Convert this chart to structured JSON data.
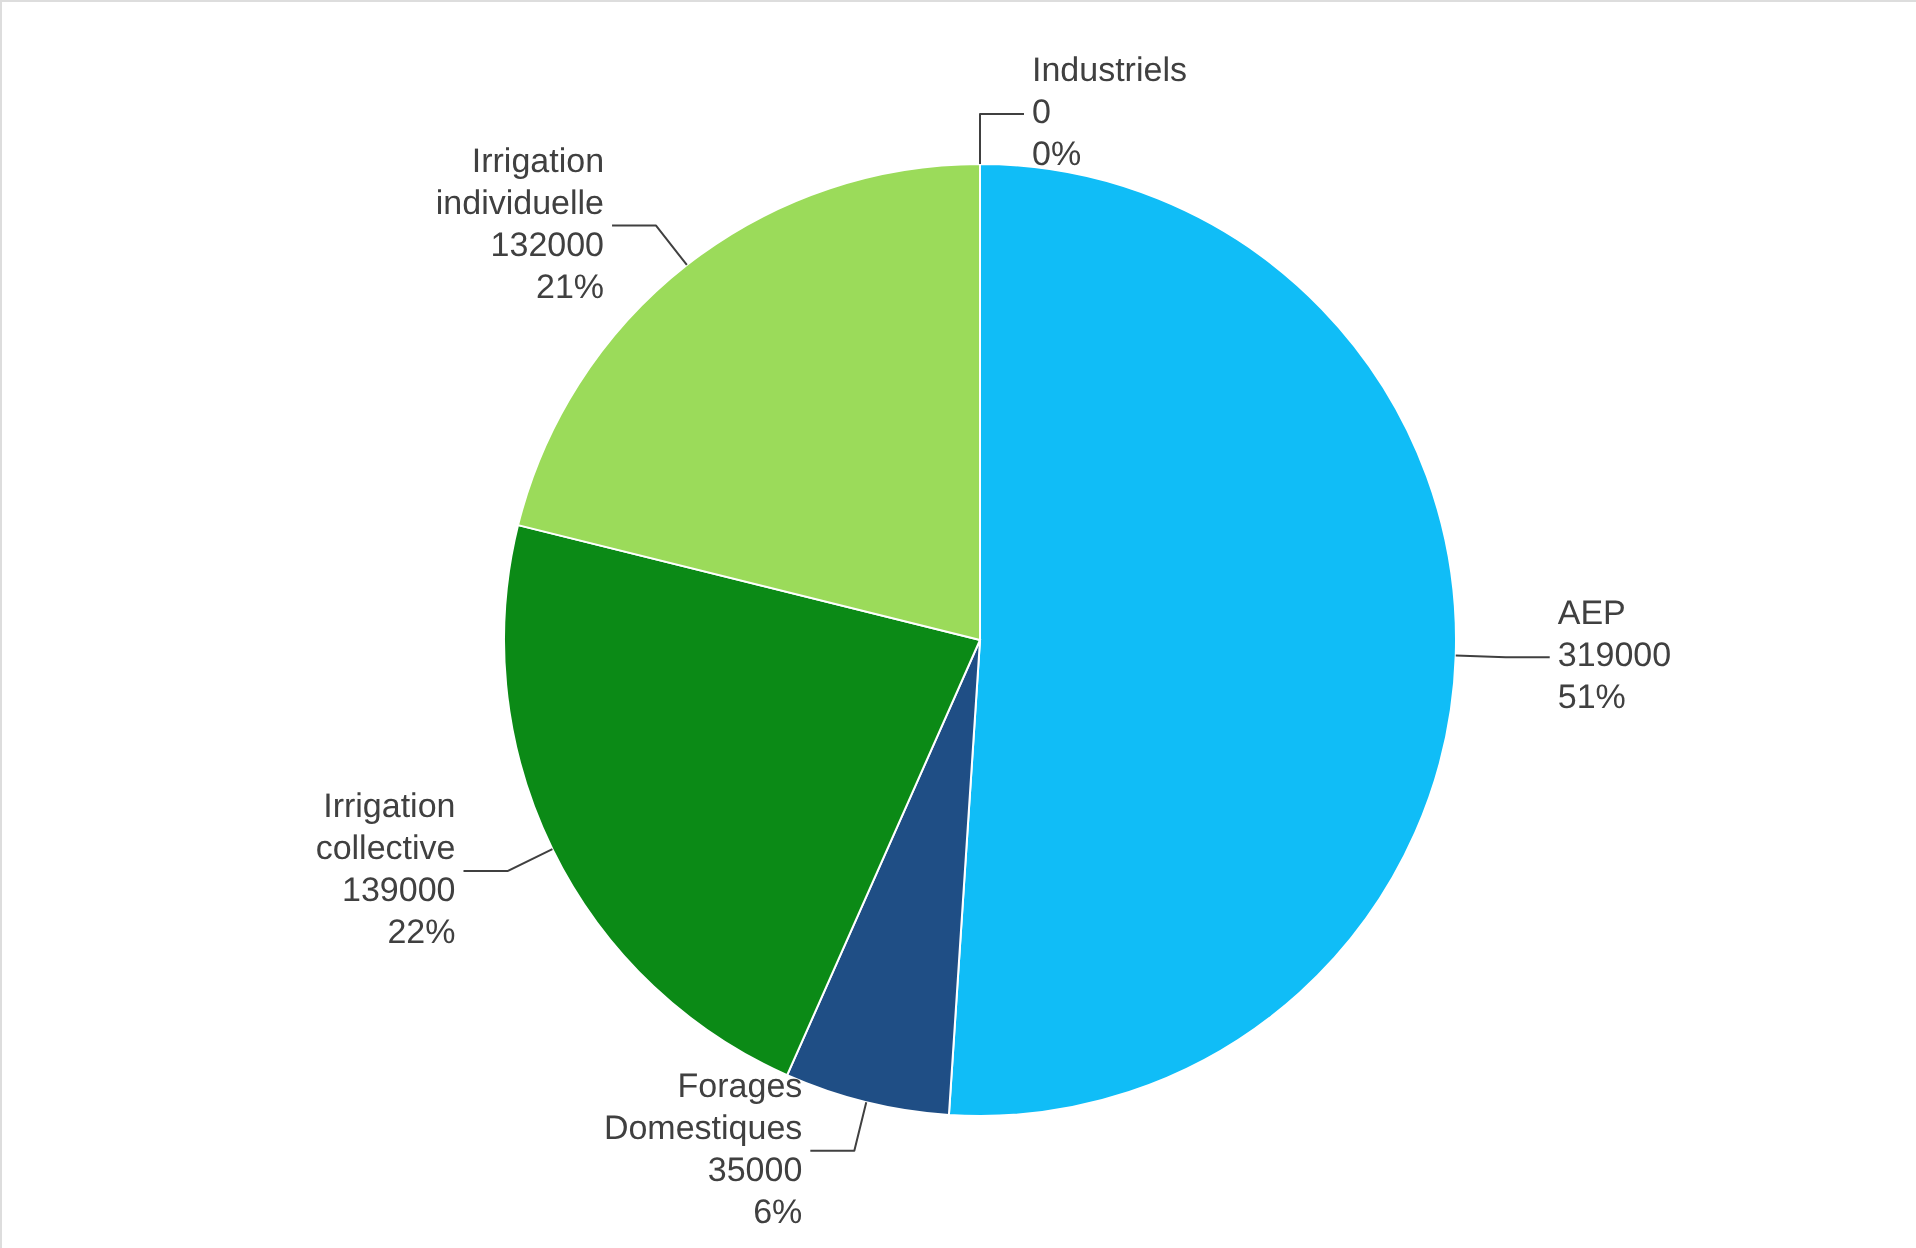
{
  "chart_data": {
    "type": "pie",
    "categories": [
      "AEP",
      "Forages Domestiques",
      "Irrigation collective",
      "Irrigation individuelle",
      "Industriels"
    ],
    "values": [
      319000,
      35000,
      139000,
      132000,
      0
    ],
    "colors": [
      "#10bdf7",
      "#1f4e85",
      "#0b8a16",
      "#9bdb5a",
      "#4f81bd"
    ],
    "value_labels": [
      "319000\n51%",
      "35000\n6%",
      "139000\n22%",
      "132000\n21%",
      "0\n0%"
    ]
  }
}
